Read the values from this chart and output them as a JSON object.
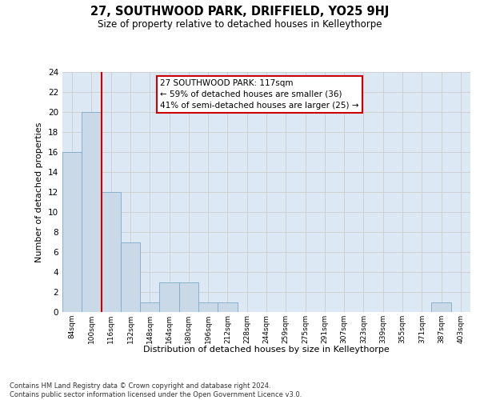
{
  "title": "27, SOUTHWOOD PARK, DRIFFIELD, YO25 9HJ",
  "subtitle": "Size of property relative to detached houses in Kelleythorpe",
  "xlabel": "Distribution of detached houses by size in Kelleythorpe",
  "ylabel": "Number of detached properties",
  "footnote1": "Contains HM Land Registry data © Crown copyright and database right 2024.",
  "footnote2": "Contains public sector information licensed under the Open Government Licence v3.0.",
  "annotation_line1": "27 SOUTHWOOD PARK: 117sqm",
  "annotation_line2": "← 59% of detached houses are smaller (36)",
  "annotation_line3": "41% of semi-detached houses are larger (25) →",
  "bin_labels": [
    "84sqm",
    "100sqm",
    "116sqm",
    "132sqm",
    "148sqm",
    "164sqm",
    "180sqm",
    "196sqm",
    "212sqm",
    "228sqm",
    "244sqm",
    "259sqm",
    "275sqm",
    "291sqm",
    "307sqm",
    "323sqm",
    "339sqm",
    "355sqm",
    "371sqm",
    "387sqm",
    "403sqm"
  ],
  "bar_heights": [
    16,
    20,
    12,
    7,
    1,
    3,
    3,
    1,
    1,
    0,
    0,
    0,
    0,
    0,
    0,
    0,
    0,
    0,
    0,
    1,
    0
  ],
  "bar_color": "#c9d9e8",
  "bar_edge_color": "#7eaac8",
  "property_line_color": "#cc0000",
  "ylim": [
    0,
    24
  ],
  "yticks": [
    0,
    2,
    4,
    6,
    8,
    10,
    12,
    14,
    16,
    18,
    20,
    22,
    24
  ],
  "grid_color": "#cccccc",
  "background_color": "#dce9f5",
  "annotation_box_color": "#ffffff",
  "annotation_box_edge": "#cc0000"
}
